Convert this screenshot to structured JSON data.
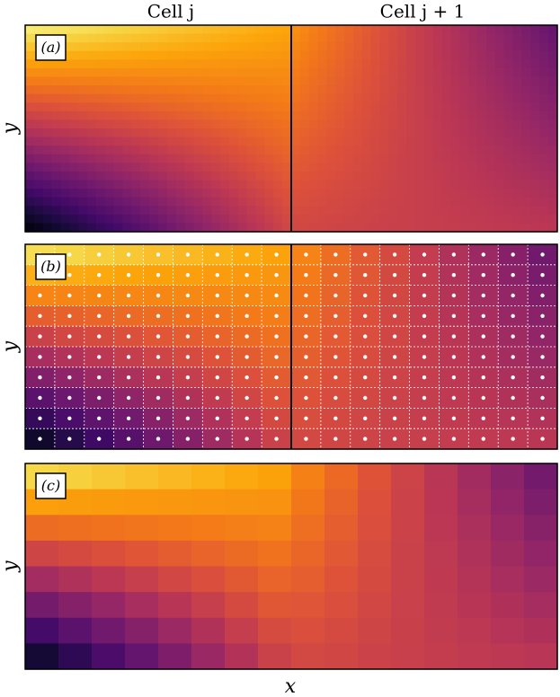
{
  "column_titles": [
    "Cell j",
    "Cell j + 1"
  ],
  "panels": [
    {
      "label": "(a)",
      "y_label": "y"
    },
    {
      "label": "(b)",
      "y_label": "y"
    },
    {
      "label": "(c)",
      "y_label": "y"
    }
  ],
  "x_label": "x"
}
